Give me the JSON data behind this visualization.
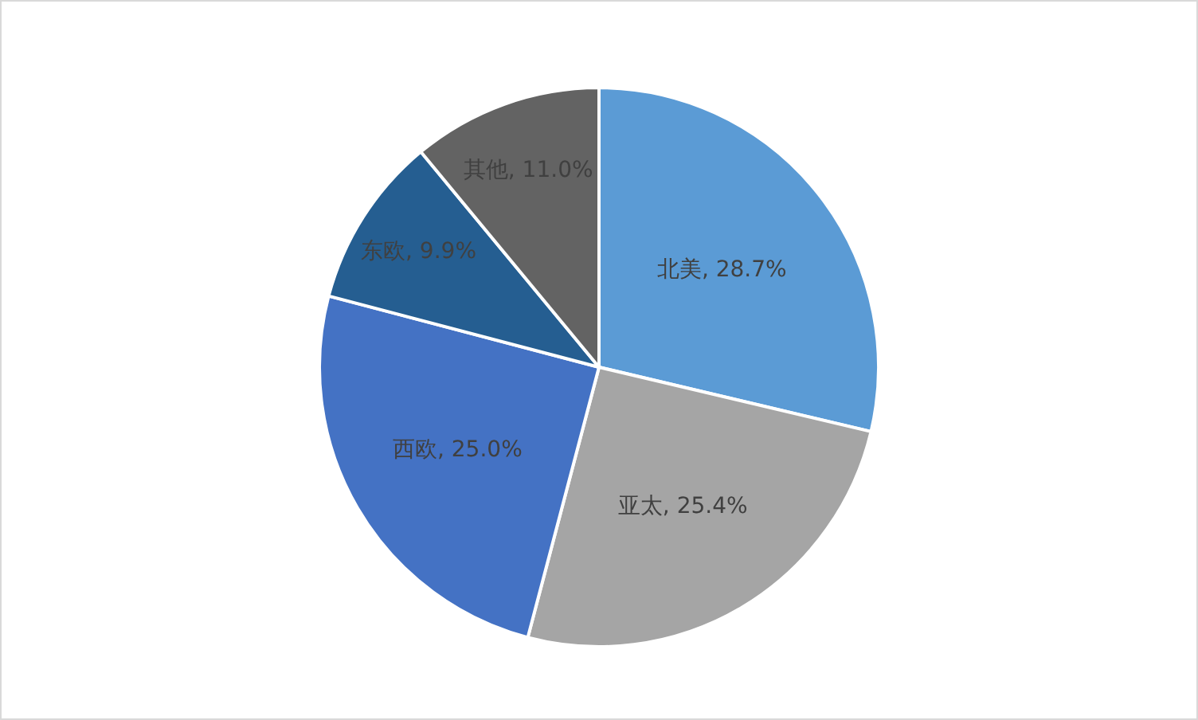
{
  "chart_data": {
    "type": "pie",
    "categories": [
      "北美",
      "亚太",
      "西欧",
      "东欧",
      "其他"
    ],
    "values": [
      28.7,
      25.4,
      25.0,
      9.9,
      11.0
    ],
    "colors": [
      "#5b9bd5",
      "#a5a5a5",
      "#4472c4",
      "#255e91",
      "#636363"
    ],
    "value_labels": [
      "28.7%",
      "25.4%",
      "25.0%",
      "9.9%",
      "11.0%"
    ],
    "legend": false
  }
}
